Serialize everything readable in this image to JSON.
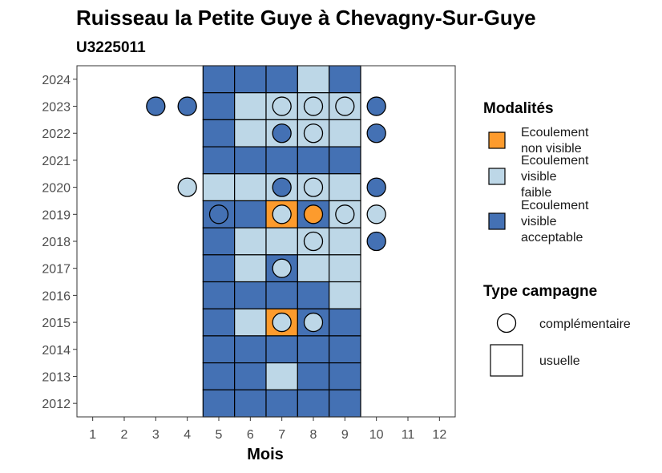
{
  "chart_data": {
    "type": "heatmap",
    "title": "Ruisseau la Petite Guye à Chevagny-Sur-Guye",
    "subtitle": "U3225011",
    "xlabel": "Mois",
    "ylabel": "",
    "x_ticks": [
      1,
      2,
      3,
      4,
      5,
      6,
      7,
      8,
      9,
      10,
      11,
      12
    ],
    "y_ticks": [
      2012,
      2013,
      2014,
      2015,
      2016,
      2017,
      2018,
      2019,
      2020,
      2021,
      2022,
      2023,
      2024
    ],
    "xlim": [
      0.5,
      12.5
    ],
    "ylim": [
      2011.5,
      2024.5
    ],
    "grid": false,
    "colors": {
      "Ecoulement non visible": "#fd9b2d",
      "Ecoulement visible faible": "#bdd7e7",
      "Ecoulement visible acceptable": "#4471b4"
    },
    "legend_modalites": {
      "title": "Modalités",
      "entries": [
        {
          "key": "Ecoulement non visible",
          "lines": [
            "Ecoulement",
            "non visible"
          ]
        },
        {
          "key": "Ecoulement visible faible",
          "lines": [
            "Ecoulement",
            "visible",
            "faible"
          ]
        },
        {
          "key": "Ecoulement visible acceptable",
          "lines": [
            "Ecoulement",
            "visible",
            "acceptable"
          ]
        }
      ]
    },
    "legend_campagne": {
      "title": "Type campagne",
      "entries": [
        {
          "key": "complementaire",
          "label": "complémentaire",
          "shape": "circle"
        },
        {
          "key": "usuelle",
          "label": "usuelle",
          "shape": "square"
        }
      ]
    },
    "usuelle": [
      {
        "year": 2024,
        "values": [
          [
            "5",
            "A"
          ],
          [
            "6",
            "A"
          ],
          [
            "7",
            "A"
          ],
          [
            "8",
            "F"
          ],
          [
            "9",
            "A"
          ]
        ]
      },
      {
        "year": 2023,
        "values": [
          [
            "5",
            "A"
          ],
          [
            "6",
            "F"
          ],
          [
            "7",
            "F"
          ],
          [
            "8",
            "F"
          ],
          [
            "9",
            "F"
          ]
        ]
      },
      {
        "year": 2022,
        "values": [
          [
            "5",
            "A"
          ],
          [
            "6",
            "F"
          ],
          [
            "7",
            "F"
          ],
          [
            "8",
            "F"
          ],
          [
            "9",
            "F"
          ]
        ]
      },
      {
        "year": 2021,
        "values": [
          [
            "5",
            "A"
          ],
          [
            "6",
            "A"
          ],
          [
            "7",
            "A"
          ],
          [
            "8",
            "A"
          ],
          [
            "9",
            "A"
          ]
        ]
      },
      {
        "year": 2020,
        "values": [
          [
            "5",
            "F"
          ],
          [
            "6",
            "F"
          ],
          [
            "7",
            "F"
          ],
          [
            "8",
            "F"
          ],
          [
            "9",
            "F"
          ]
        ]
      },
      {
        "year": 2019,
        "values": [
          [
            "5",
            "A"
          ],
          [
            "6",
            "A"
          ],
          [
            "7",
            "N"
          ],
          [
            "8",
            "A"
          ],
          [
            "9",
            "F"
          ]
        ]
      },
      {
        "year": 2018,
        "values": [
          [
            "5",
            "A"
          ],
          [
            "6",
            "F"
          ],
          [
            "7",
            "F"
          ],
          [
            "8",
            "F"
          ],
          [
            "9",
            "F"
          ]
        ]
      },
      {
        "year": 2017,
        "values": [
          [
            "5",
            "A"
          ],
          [
            "6",
            "F"
          ],
          [
            "7",
            "A"
          ],
          [
            "8",
            "F"
          ],
          [
            "9",
            "F"
          ]
        ]
      },
      {
        "year": 2016,
        "values": [
          [
            "5",
            "A"
          ],
          [
            "6",
            "A"
          ],
          [
            "7",
            "A"
          ],
          [
            "8",
            "A"
          ],
          [
            "9",
            "F"
          ]
        ]
      },
      {
        "year": 2015,
        "values": [
          [
            "5",
            "A"
          ],
          [
            "6",
            "F"
          ],
          [
            "7",
            "N"
          ],
          [
            "8",
            "A"
          ],
          [
            "9",
            "A"
          ]
        ]
      },
      {
        "year": 2014,
        "values": [
          [
            "5",
            "A"
          ],
          [
            "6",
            "A"
          ],
          [
            "7",
            "A"
          ],
          [
            "8",
            "A"
          ],
          [
            "9",
            "A"
          ]
        ]
      },
      {
        "year": 2013,
        "values": [
          [
            "5",
            "A"
          ],
          [
            "6",
            "A"
          ],
          [
            "7",
            "F"
          ],
          [
            "8",
            "A"
          ],
          [
            "9",
            "A"
          ]
        ]
      },
      {
        "year": 2012,
        "values": [
          [
            "5",
            "A"
          ],
          [
            "6",
            "A"
          ],
          [
            "7",
            "A"
          ],
          [
            "8",
            "A"
          ],
          [
            "9",
            "A"
          ]
        ]
      }
    ],
    "complementaire": [
      {
        "year": 2023,
        "month": 3,
        "value": "A"
      },
      {
        "year": 2023,
        "month": 4,
        "value": "A"
      },
      {
        "year": 2023,
        "month": 7,
        "value": "F"
      },
      {
        "year": 2023,
        "month": 8,
        "value": "F"
      },
      {
        "year": 2023,
        "month": 9,
        "value": "F"
      },
      {
        "year": 2023,
        "month": 10,
        "value": "A"
      },
      {
        "year": 2022,
        "month": 7,
        "value": "A"
      },
      {
        "year": 2022,
        "month": 8,
        "value": "F"
      },
      {
        "year": 2022,
        "month": 10,
        "value": "A"
      },
      {
        "year": 2020,
        "month": 4,
        "value": "F"
      },
      {
        "year": 2020,
        "month": 7,
        "value": "A"
      },
      {
        "year": 2020,
        "month": 8,
        "value": "F"
      },
      {
        "year": 2020,
        "month": 10,
        "value": "A"
      },
      {
        "year": 2019,
        "month": 5,
        "value": "A"
      },
      {
        "year": 2019,
        "month": 7,
        "value": "F"
      },
      {
        "year": 2019,
        "month": 8,
        "value": "N"
      },
      {
        "year": 2019,
        "month": 9,
        "value": "F"
      },
      {
        "year": 2019,
        "month": 10,
        "value": "F"
      },
      {
        "year": 2018,
        "month": 8,
        "value": "F"
      },
      {
        "year": 2018,
        "month": 10,
        "value": "A"
      },
      {
        "year": 2017,
        "month": 7,
        "value": "F"
      },
      {
        "year": 2015,
        "month": 7,
        "value": "F"
      },
      {
        "year": 2015,
        "month": 8,
        "value": "F"
      }
    ],
    "value_codes": {
      "N": "Ecoulement non visible",
      "F": "Ecoulement visible faible",
      "A": "Ecoulement visible acceptable"
    }
  }
}
